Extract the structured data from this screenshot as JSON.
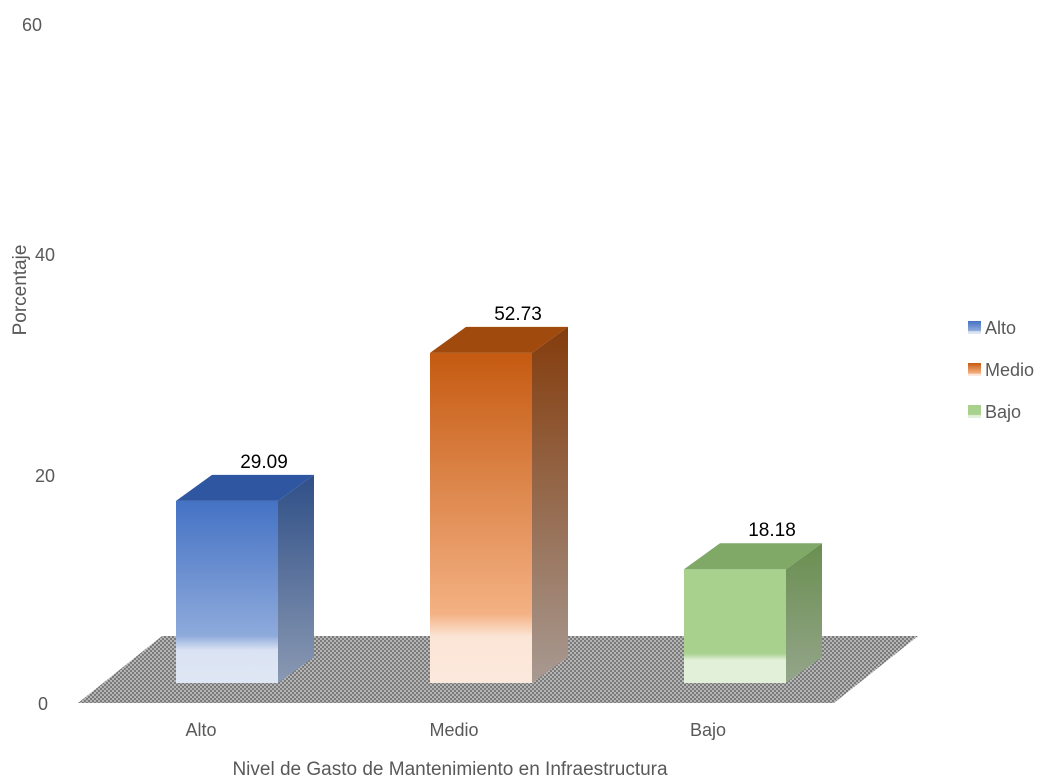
{
  "chart_data": {
    "type": "bar",
    "categories": [
      "Alto",
      "Medio",
      "Bajo"
    ],
    "values": [
      29.09,
      52.73,
      18.18
    ],
    "data_labels": [
      "29.09",
      "52.73",
      "18.18"
    ],
    "title": "",
    "xlabel": "Nivel de Gasto de Mantenimiento en Infraestructura",
    "ylabel": "Porcentaje",
    "ylim": [
      0,
      60
    ],
    "yticks": [
      "0",
      "20",
      "40",
      "60"
    ],
    "grid": false,
    "legend": {
      "placement": "right",
      "entries": [
        "Alto",
        "Medio",
        "Bajo"
      ]
    },
    "style": "3d-column",
    "colors": {
      "Alto": "#4472c4",
      "Medio": "#c55a11",
      "Bajo": "#a9d18e",
      "floor": "#8c8c8c"
    }
  }
}
